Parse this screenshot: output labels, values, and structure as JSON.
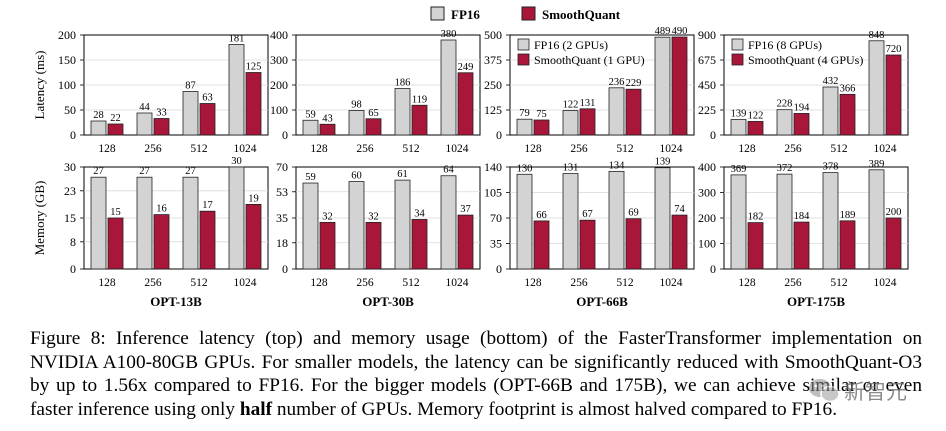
{
  "legend": {
    "fp16": "FP16",
    "smoothquant": "SmoothQuant"
  },
  "colors": {
    "fp16_fill": "#d3d3d3",
    "sq_fill": "#a8163a",
    "stroke": "#222222"
  },
  "y_labels": {
    "latency": "Latency (ms)",
    "memory": "Memory (GB)"
  },
  "chart_data": [
    {
      "type": "bar",
      "model": "OPT-13B",
      "row": "latency",
      "ylabel": "Latency (ms)",
      "categories": [
        "128",
        "256",
        "512",
        "1024"
      ],
      "ylim": [
        0,
        200
      ],
      "yticks": [
        0,
        50,
        100,
        150,
        200
      ],
      "series": [
        {
          "name": "FP16",
          "values": [
            28,
            44,
            87,
            181
          ]
        },
        {
          "name": "SmoothQuant",
          "values": [
            22,
            33,
            63,
            125
          ]
        }
      ],
      "legend": null
    },
    {
      "type": "bar",
      "model": "OPT-30B",
      "row": "latency",
      "categories": [
        "128",
        "256",
        "512",
        "1024"
      ],
      "ylim": [
        0,
        400
      ],
      "yticks": [
        0,
        100,
        200,
        300,
        400
      ],
      "series": [
        {
          "name": "FP16",
          "values": [
            59,
            98,
            186,
            380
          ]
        },
        {
          "name": "SmoothQuant",
          "values": [
            43,
            65,
            119,
            249
          ]
        }
      ],
      "legend": null
    },
    {
      "type": "bar",
      "model": "OPT-66B",
      "row": "latency",
      "categories": [
        "128",
        "256",
        "512",
        "1024"
      ],
      "ylim": [
        0,
        500
      ],
      "yticks": [
        0,
        125,
        250,
        375,
        500
      ],
      "series": [
        {
          "name": "FP16 (2 GPUs)",
          "values": [
            79,
            122,
            236,
            489
          ]
        },
        {
          "name": "SmoothQuant (1 GPU)",
          "values": [
            75,
            131,
            229,
            490
          ]
        }
      ],
      "legend": [
        "FP16 (2 GPUs)",
        "SmoothQuant (1 GPU)"
      ]
    },
    {
      "type": "bar",
      "model": "OPT-175B",
      "row": "latency",
      "categories": [
        "128",
        "256",
        "512",
        "1024"
      ],
      "ylim": [
        0,
        900
      ],
      "yticks": [
        0,
        225,
        450,
        675,
        900
      ],
      "series": [
        {
          "name": "FP16 (8 GPUs)",
          "values": [
            139,
            228,
            432,
            848
          ]
        },
        {
          "name": "SmoothQuant (4 GPUs)",
          "values": [
            122,
            194,
            366,
            720
          ]
        }
      ],
      "legend": [
        "FP16 (8 GPUs)",
        "SmoothQuant (4 GPUs)"
      ]
    },
    {
      "type": "bar",
      "model": "OPT-13B",
      "row": "memory",
      "ylabel": "Memory (GB)",
      "title": "OPT-13B",
      "categories": [
        "128",
        "256",
        "512",
        "1024"
      ],
      "ylim": [
        0,
        30
      ],
      "yticks": [
        0,
        8,
        15,
        23,
        30
      ],
      "series": [
        {
          "name": "FP16",
          "values": [
            27,
            27,
            27,
            30
          ]
        },
        {
          "name": "SmoothQuant",
          "values": [
            15,
            16,
            17,
            19
          ]
        }
      ],
      "legend": null
    },
    {
      "type": "bar",
      "model": "OPT-30B",
      "row": "memory",
      "title": "OPT-30B",
      "categories": [
        "128",
        "256",
        "512",
        "1024"
      ],
      "ylim": [
        0,
        70
      ],
      "yticks": [
        0,
        18,
        35,
        53,
        70
      ],
      "series": [
        {
          "name": "FP16",
          "values": [
            59,
            60,
            61,
            64
          ]
        },
        {
          "name": "SmoothQuant",
          "values": [
            32,
            32,
            34,
            37
          ]
        }
      ],
      "legend": null
    },
    {
      "type": "bar",
      "model": "OPT-66B",
      "row": "memory",
      "title": "OPT-66B",
      "categories": [
        "128",
        "256",
        "512",
        "1024"
      ],
      "ylim": [
        0,
        140
      ],
      "yticks": [
        0,
        35,
        70,
        105,
        140
      ],
      "series": [
        {
          "name": "FP16 (2 GPUs)",
          "values": [
            130,
            131,
            134,
            139
          ]
        },
        {
          "name": "SmoothQuant (1 GPU)",
          "values": [
            66,
            67,
            69,
            74
          ]
        }
      ],
      "legend": null
    },
    {
      "type": "bar",
      "model": "OPT-175B",
      "row": "memory",
      "title": "OPT-175B",
      "categories": [
        "128",
        "256",
        "512",
        "1024"
      ],
      "ylim": [
        0,
        400
      ],
      "yticks": [
        0,
        100,
        200,
        300,
        400
      ],
      "series": [
        {
          "name": "FP16 (8 GPUs)",
          "values": [
            369,
            372,
            378,
            389
          ]
        },
        {
          "name": "SmoothQuant (4 GPUs)",
          "values": [
            182,
            184,
            189,
            200
          ]
        }
      ],
      "legend": null
    }
  ],
  "caption": {
    "label": "Figure 8:",
    "part1": " Inference latency (top) and memory usage (bottom) of the FasterTransformer implementation on NVIDIA A100-80GB GPUs. For smaller models, the latency can be significantly reduced with SmoothQuant-O3 by up to 1.56x compared to FP16. For the bigger models (OPT-66B and 175B), we can achieve similar or even faster inference using only ",
    "bold": "half",
    "part2": " number of GPUs. Memory footprint is almost halved compared to FP16."
  },
  "watermark": {
    "text": "新智元",
    "icon": "wechat-icon"
  }
}
